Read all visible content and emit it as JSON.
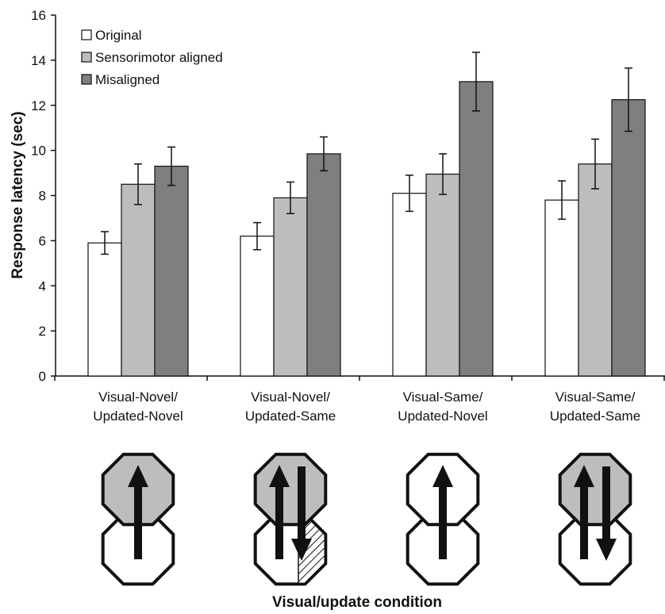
{
  "chart_data": {
    "type": "bar",
    "xlabel": "Visual/update condition",
    "ylabel": "Response latency (sec)",
    "ylim": [
      0,
      16
    ],
    "yticks": [
      0,
      2,
      4,
      6,
      8,
      10,
      12,
      14,
      16
    ],
    "grid": false,
    "legend_position": "top-left",
    "categories": [
      [
        "Visual-Novel/",
        "Updated-Novel"
      ],
      [
        "Visual-Novel/",
        "Updated-Same"
      ],
      [
        "Visual-Same/",
        "Updated-Novel"
      ],
      [
        "Visual-Same/",
        "Updated-Same"
      ]
    ],
    "series": [
      {
        "name": "Original",
        "color": "#ffffff",
        "values": [
          5.9,
          6.2,
          8.1,
          7.8
        ],
        "errors": [
          0.5,
          0.6,
          0.8,
          0.85
        ]
      },
      {
        "name": "Sensorimotor aligned",
        "color": "#bdbdbd",
        "values": [
          8.5,
          7.9,
          8.95,
          9.4
        ],
        "errors": [
          0.9,
          0.7,
          0.9,
          1.1
        ]
      },
      {
        "name": "Misaligned",
        "color": "#7f7f7f",
        "values": [
          9.3,
          9.85,
          13.05,
          12.25
        ],
        "errors": [
          0.85,
          0.75,
          1.3,
          1.4
        ]
      }
    ]
  },
  "icons": [
    {
      "name": "condition-icon-visual-novel-updated-novel",
      "top_shaded": true,
      "arrows": [
        "up"
      ],
      "hatched_bottom_right": false
    },
    {
      "name": "condition-icon-visual-novel-updated-same",
      "top_shaded": true,
      "arrows": [
        "up",
        "down"
      ],
      "hatched_bottom_right": true
    },
    {
      "name": "condition-icon-visual-same-updated-novel",
      "top_shaded": false,
      "arrows": [
        "up"
      ],
      "hatched_bottom_right": false
    },
    {
      "name": "condition-icon-visual-same-updated-same",
      "top_shaded": true,
      "arrows": [
        "up",
        "down"
      ],
      "hatched_bottom_right": false
    }
  ]
}
